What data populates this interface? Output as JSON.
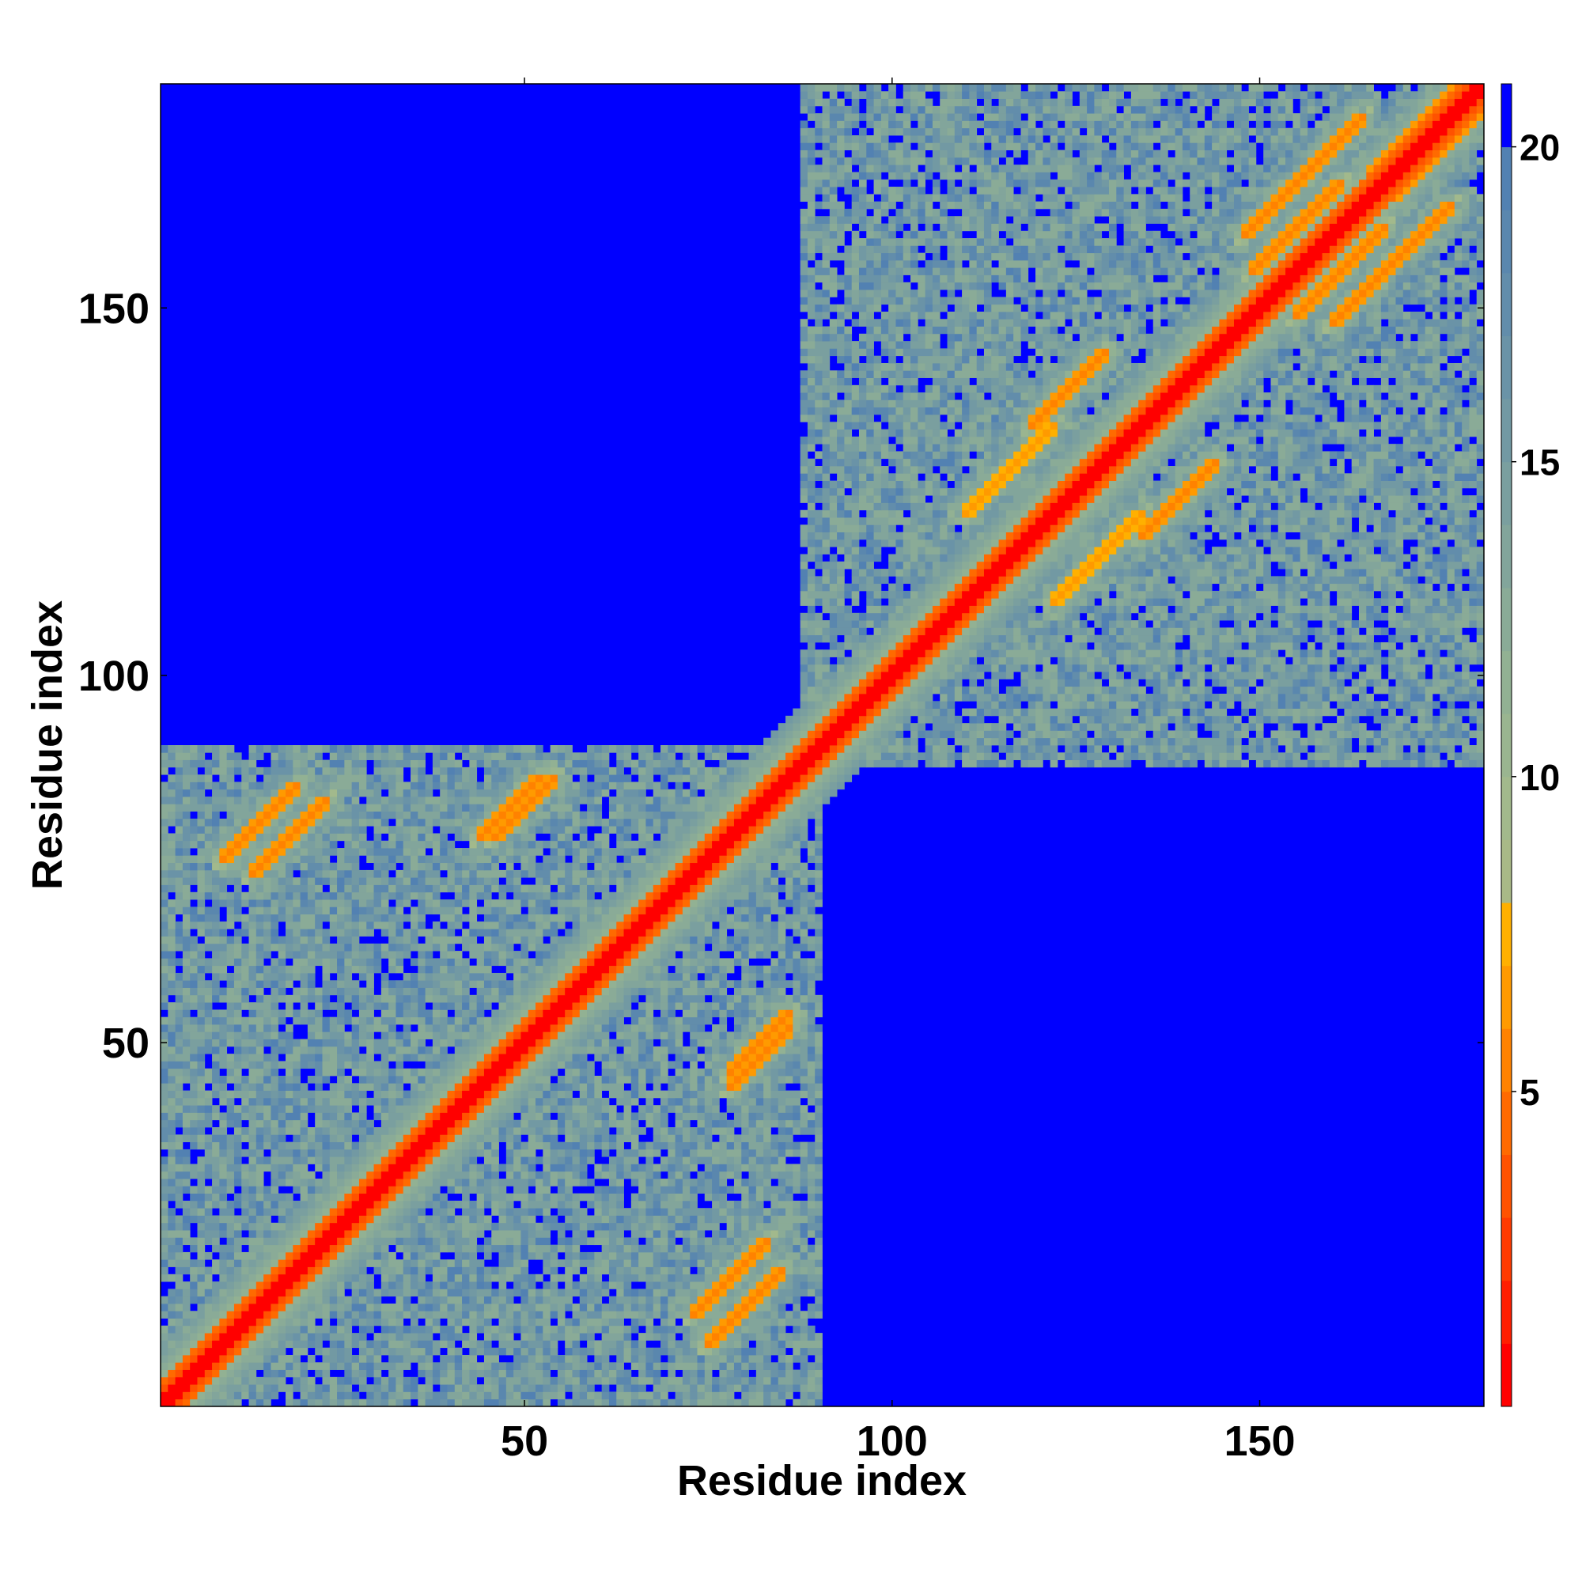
{
  "chart_data": {
    "type": "heatmap",
    "title": "",
    "xlabel": "Residue index",
    "ylabel": "Residue index",
    "n_residues": 180,
    "xlim": [
      0.5,
      180.5
    ],
    "ylim": [
      0.5,
      180.5
    ],
    "x_ticks": [
      50,
      100,
      150
    ],
    "y_ticks": [
      50,
      100,
      150
    ],
    "colorbar": {
      "range": [
        0,
        21
      ],
      "ticks": [
        5,
        10,
        15,
        20
      ],
      "levels": [
        {
          "max": 1,
          "color": "#ff0000"
        },
        {
          "max": 2,
          "color": "#ff1e00"
        },
        {
          "max": 3,
          "color": "#ff3a00"
        },
        {
          "max": 4,
          "color": "#ff5200"
        },
        {
          "max": 5,
          "color": "#ff6a00"
        },
        {
          "max": 6,
          "color": "#ff8200"
        },
        {
          "max": 7,
          "color": "#ff9a00"
        },
        {
          "max": 8,
          "color": "#ffb000"
        },
        {
          "max": 9,
          "color": "#a9b987"
        },
        {
          "max": 10,
          "color": "#a2b98c"
        },
        {
          "max": 11,
          "color": "#9ab590"
        },
        {
          "max": 12,
          "color": "#92b193"
        },
        {
          "max": 13,
          "color": "#8aab97"
        },
        {
          "max": 14,
          "color": "#82a59b"
        },
        {
          "max": 15,
          "color": "#7a9f9f"
        },
        {
          "max": 16,
          "color": "#7299a3"
        },
        {
          "max": 17,
          "color": "#6a93a7"
        },
        {
          "max": 18,
          "color": "#628dab"
        },
        {
          "max": 19,
          "color": "#5a87ae"
        },
        {
          "max": 20,
          "color": "#5281b2"
        },
        {
          "max": 21,
          "color": "#0000ff"
        }
      ]
    },
    "description_of_values": "pairwise residue distance map; values above 20 saturate to blue",
    "domains": [
      {
        "start": 1,
        "end": 90
      },
      {
        "start": 88,
        "end": 180
      }
    ],
    "contact_bands": [
      {
        "kind": "diagonal",
        "i_start": 1,
        "i_end": 180,
        "width": 3,
        "value": 1
      },
      {
        "kind": "antiparallel",
        "center_i": 28,
        "center_j": 28,
        "half_length": 8,
        "value": 6
      },
      {
        "kind": "antiparallel",
        "center_i": 18,
        "center_j": 78,
        "half_length": 5,
        "value": 6
      },
      {
        "kind": "antiparallel",
        "center_i": 48,
        "center_j": 82,
        "half_length": 4,
        "value": 6
      },
      {
        "kind": "antiparallel",
        "center_i": 55,
        "center_j": 53,
        "half_length": 6,
        "value": 7
      },
      {
        "kind": "antiparallel",
        "center_i": 67,
        "center_j": 68,
        "half_length": 7,
        "value": 6
      },
      {
        "kind": "antiparallel",
        "center_i": 82,
        "center_j": 50,
        "half_length": 4,
        "value": 6
      },
      {
        "kind": "antiparallel",
        "center_i": 80,
        "center_j": 14,
        "half_length": 5,
        "value": 6
      },
      {
        "kind": "antiparallel",
        "center_i": 116,
        "center_j": 128,
        "half_length": 6,
        "value": 7
      },
      {
        "kind": "antiparallel",
        "center_i": 124,
        "center_j": 139,
        "half_length": 5,
        "value": 6
      },
      {
        "kind": "antiparallel",
        "center_i": 143,
        "center_j": 142,
        "half_length": 9,
        "value": 6
      },
      {
        "kind": "antiparallel",
        "center_i": 156,
        "center_j": 168,
        "half_length": 8,
        "value": 6
      },
      {
        "kind": "antiparallel",
        "center_i": 161,
        "center_j": 155,
        "half_length": 6,
        "value": 6
      },
      {
        "kind": "antiparallel",
        "center_i": 171,
        "center_j": 174,
        "half_length": 6,
        "value": 6
      }
    ],
    "grid": false,
    "legend": "colorbar-right"
  }
}
